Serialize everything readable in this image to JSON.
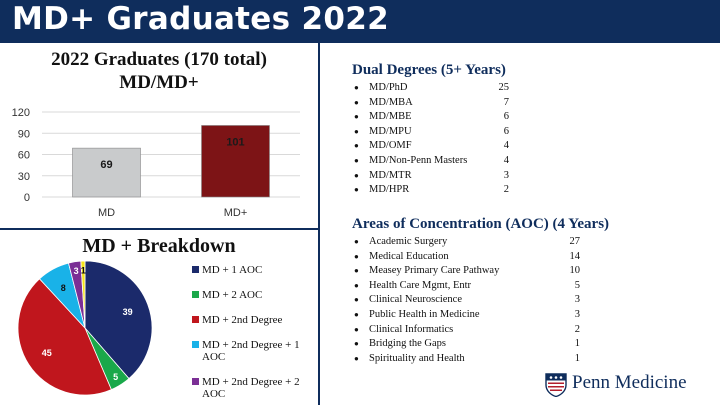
{
  "slide_title": "MD+ Graduates 2022",
  "bar_section": {
    "title_line1": "2022 Graduates (170 total)",
    "title_line2": "MD/MD+"
  },
  "pie_section": {
    "title": "MD + Breakdown"
  },
  "chart_data": [
    {
      "type": "bar",
      "categories": [
        "MD",
        "MD+"
      ],
      "values": [
        69,
        101
      ],
      "data_labels": [
        "69",
        "101"
      ],
      "colors": [
        "#c9cbcc",
        "#7d1416"
      ],
      "yticks": [
        "0",
        "30",
        "60",
        "90",
        "120"
      ],
      "ylim": [
        0,
        120
      ],
      "grid": true
    },
    {
      "type": "pie",
      "title": "MD + Breakdown",
      "slices": [
        {
          "label": "MD + 1 AOC",
          "value": 39,
          "data_label": "39",
          "color": "#1b2a6b"
        },
        {
          "label": "MD + 2 AOC",
          "value": 5,
          "data_label": "5",
          "color": "#1aa84a"
        },
        {
          "label": "MD + 2nd Degree",
          "value": 45,
          "data_label": "45",
          "color": "#c0161d"
        },
        {
          "label": "MD + 2nd Degree + 1 AOC",
          "value": 8,
          "data_label": "8",
          "color": "#19b2e8"
        },
        {
          "label": "MD + 2nd Degree + 2 AOC",
          "value": 3,
          "data_label": "3",
          "color": "#7b2f95"
        },
        {
          "label": "",
          "value": 1,
          "data_label": "1",
          "color": "#f4e41a"
        }
      ],
      "legend": [
        "MD + 1 AOC",
        "MD + 2 AOC",
        "MD + 2nd Degree",
        "MD + 2nd Degree + 1 AOC",
        "MD + 2nd Degree + 2 AOC"
      ],
      "legend_placement": "right"
    }
  ],
  "dual_degrees": {
    "title": "Dual Degrees (5+ Years)",
    "items": [
      {
        "name": "MD/PhD",
        "value": "25"
      },
      {
        "name": "MD/MBA",
        "value": "7"
      },
      {
        "name": "MD/MBE",
        "value": "6"
      },
      {
        "name": "MD/MPU",
        "value": "6"
      },
      {
        "name": "MD/OMF",
        "value": "4"
      },
      {
        "name": "MD/Non-Penn Masters",
        "value": "4"
      },
      {
        "name": "MD/MTR",
        "value": "3"
      },
      {
        "name": "MD/HPR",
        "value": "2"
      }
    ]
  },
  "aoc": {
    "title": "Areas of Concentration (AOC) (4 Years)",
    "items": [
      {
        "name": "Academic Surgery",
        "value": "27"
      },
      {
        "name": "Medical Education",
        "value": "14"
      },
      {
        "name": "Measey Primary Care Pathway",
        "value": "10"
      },
      {
        "name": "Health Care Mgmt, Entr",
        "value": "5"
      },
      {
        "name": "Clinical Neuroscience",
        "value": "3"
      },
      {
        "name": "Public Health in Medicine",
        "value": "3"
      },
      {
        "name": "Clinical Informatics",
        "value": "2"
      },
      {
        "name": "Bridging the Gaps",
        "value": "1"
      },
      {
        "name": "Spirituality and Health",
        "value": "1"
      }
    ]
  },
  "logo": {
    "text": "Penn Medicine",
    "icon": "penn-shield-icon"
  },
  "colors": {
    "navy": "#0f2d5c",
    "gray_bar": "#c9cbcc",
    "maroon_bar": "#7d1416"
  }
}
